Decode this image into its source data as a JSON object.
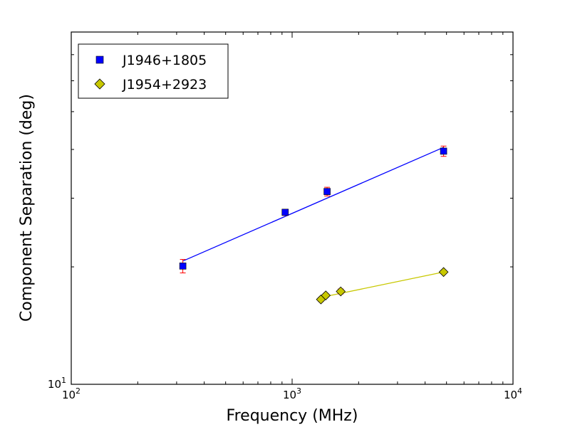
{
  "chart_data": {
    "type": "scatter",
    "title": "",
    "xlabel": "Frequency (MHz)",
    "ylabel": "Component Separation (deg)",
    "x_scale": "log",
    "y_scale": "log",
    "xlim": [
      100,
      10000
    ],
    "ylim": [
      10,
      80
    ],
    "x_ticks": [
      {
        "value": 100,
        "base": "10",
        "exp": "2"
      },
      {
        "value": 1000,
        "base": "10",
        "exp": "3"
      },
      {
        "value": 10000,
        "base": "10",
        "exp": "4"
      }
    ],
    "y_ticks": [
      {
        "value": 10,
        "base": "10",
        "exp": "1"
      }
    ],
    "grid": false,
    "legend_position": "top-left",
    "series": [
      {
        "name": "J1946+1805",
        "marker": "square",
        "marker_color": "#0000ff",
        "line_color": "#0000ff",
        "errorbar_color": "#ff0000",
        "points": [
          {
            "x": 320,
            "y": 20.1,
            "err": 0.8
          },
          {
            "x": 930,
            "y": 27.6,
            "err": 0.5
          },
          {
            "x": 1440,
            "y": 31.2,
            "err": 0.8
          },
          {
            "x": 4850,
            "y": 39.6,
            "err": 1.2
          }
        ],
        "fit": [
          {
            "x": 320,
            "y": 20.7
          },
          {
            "x": 4850,
            "y": 40.5
          }
        ]
      },
      {
        "name": "J1954+2923",
        "marker": "diamond",
        "marker_color": "#c8c800",
        "line_color": "#c8c800",
        "errorbar_color": "#ff0000",
        "points": [
          {
            "x": 1350,
            "y": 16.5,
            "err": 0.2
          },
          {
            "x": 1420,
            "y": 16.9,
            "err": 0.2
          },
          {
            "x": 1660,
            "y": 17.3,
            "err": 0.25
          },
          {
            "x": 4850,
            "y": 19.4,
            "err": 0.2
          }
        ],
        "fit": [
          {
            "x": 1420,
            "y": 16.8
          },
          {
            "x": 4850,
            "y": 19.4
          }
        ]
      }
    ]
  }
}
